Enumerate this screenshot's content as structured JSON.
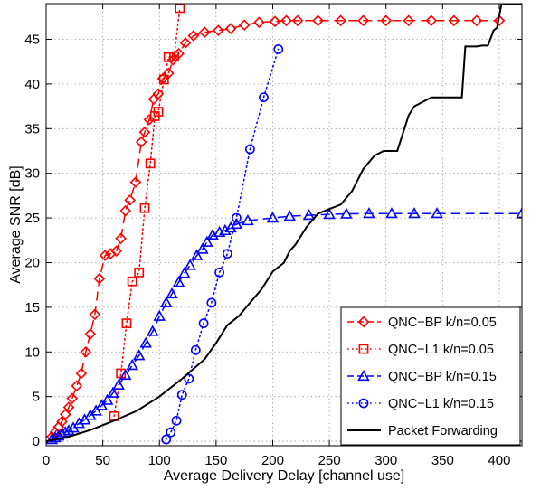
{
  "chart_data": {
    "type": "line",
    "title": "",
    "xlabel": "Average Delivery Delay [channel use]",
    "ylabel": "Average SNR [dB]",
    "xlim": [
      0,
      420
    ],
    "ylim": [
      -0.5,
      49
    ],
    "xticks": [
      0,
      50,
      100,
      150,
      200,
      250,
      300,
      350,
      400
    ],
    "yticks": [
      0,
      5,
      10,
      15,
      20,
      25,
      30,
      35,
      40,
      45
    ],
    "grid": true,
    "legend_position": "bottom-right",
    "series": [
      {
        "name": "QNC−BP  k/n=0.05",
        "color": "#ff0000",
        "line": "dashed",
        "marker": "diamond",
        "x": [
          5,
          8,
          11,
          14,
          17,
          20,
          23,
          27,
          31,
          35,
          39,
          43,
          47,
          52,
          57,
          62,
          66,
          70,
          74,
          79,
          84,
          87,
          91,
          95,
          99,
          103,
          108,
          112,
          117,
          123,
          130,
          140,
          152,
          163,
          175,
          188,
          202,
          212,
          222,
          240,
          260,
          280,
          300,
          320,
          340,
          360,
          380,
          400
        ],
        "y": [
          0.5,
          1.0,
          1.6,
          2.2,
          3.0,
          3.8,
          4.8,
          6.2,
          7.6,
          10.0,
          12.0,
          14.2,
          18.2,
          20.8,
          21.0,
          21.3,
          22.7,
          25.8,
          27.0,
          29.0,
          33.5,
          34.6,
          36.0,
          38.3,
          38.9,
          40.6,
          41.2,
          42.7,
          43.4,
          44.6,
          45.4,
          45.8,
          46.0,
          46.2,
          46.6,
          46.9,
          47.0,
          47.1,
          47.1,
          47.1,
          47.1,
          47.1,
          47.1,
          47.1,
          47.1,
          47.1,
          47.1,
          47.1
        ]
      },
      {
        "name": "QNC−L1  k/n=0.05",
        "color": "#ff0000",
        "line": "dotted",
        "marker": "square",
        "x": [
          60,
          66,
          71,
          76,
          82,
          87,
          92,
          96,
          99,
          104,
          108,
          113,
          118
        ],
        "y": [
          2.8,
          7.6,
          13.2,
          17.9,
          18.9,
          26.1,
          31.1,
          36.4,
          36.9,
          40.5,
          43.0,
          43.1,
          48.5
        ]
      },
      {
        "name": "QNC−BP  k/n=0.15",
        "color": "#0000ff",
        "line": "dashed",
        "marker": "triangle",
        "x": [
          5,
          8,
          11,
          14,
          17,
          20,
          24,
          29,
          34,
          39,
          44,
          49,
          54,
          59,
          64,
          70,
          76,
          82,
          88,
          94,
          100,
          106,
          111,
          117,
          122,
          127,
          133,
          138,
          142,
          147,
          153,
          158,
          163,
          168,
          178,
          200,
          215,
          232,
          250,
          265,
          285,
          305,
          325,
          345,
          420
        ],
        "y": [
          0.2,
          0.4,
          0.6,
          0.8,
          1.0,
          1.2,
          1.5,
          2.0,
          2.4,
          2.9,
          3.4,
          4.0,
          4.6,
          5.4,
          6.3,
          7.4,
          8.5,
          9.6,
          11.0,
          12.3,
          14.0,
          15.5,
          16.5,
          17.8,
          18.8,
          19.7,
          20.8,
          21.5,
          22.3,
          23.1,
          23.4,
          23.6,
          23.9,
          24.3,
          24.7,
          25.0,
          25.2,
          25.3,
          25.4,
          25.45,
          25.5,
          25.5,
          25.5,
          25.5,
          25.5
        ]
      },
      {
        "name": "QNC−L1  k/n=0.15",
        "color": "#0000ff",
        "line": "dotted",
        "marker": "circle",
        "x": [
          106,
          110,
          115,
          120,
          126,
          132,
          139,
          146,
          153,
          160,
          168,
          180,
          192,
          205
        ],
        "y": [
          0.2,
          1.0,
          2.3,
          5.2,
          7.0,
          10.2,
          13.2,
          15.5,
          18.9,
          21.0,
          25.0,
          32.7,
          38.5,
          43.9
        ]
      },
      {
        "name": "Packet Forwarding",
        "color": "#000000",
        "line": "solid",
        "marker": "none",
        "x": [
          0,
          20,
          40,
          60,
          80,
          100,
          120,
          140,
          150,
          160,
          170,
          180,
          190,
          200,
          210,
          215,
          220,
          230,
          240,
          250,
          260,
          270,
          280,
          290,
          298,
          300,
          310,
          315,
          320,
          325,
          340,
          345,
          350,
          355,
          360,
          367,
          370,
          380,
          385,
          390,
          395,
          398,
          402,
          420
        ],
        "y": [
          0.0,
          0.5,
          1.3,
          2.3,
          3.4,
          5.0,
          7.0,
          9.2,
          11.0,
          13.0,
          14.0,
          15.5,
          17.0,
          19.0,
          20.0,
          21.3,
          22.0,
          24.0,
          25.5,
          26.0,
          26.5,
          28.0,
          30.5,
          32.0,
          32.5,
          32.5,
          32.5,
          34.5,
          36.5,
          37.5,
          38.5,
          38.5,
          38.5,
          38.5,
          38.5,
          38.5,
          44.2,
          44.2,
          44.3,
          44.3,
          46.0,
          46.3,
          49.0,
          49.0
        ]
      }
    ]
  }
}
